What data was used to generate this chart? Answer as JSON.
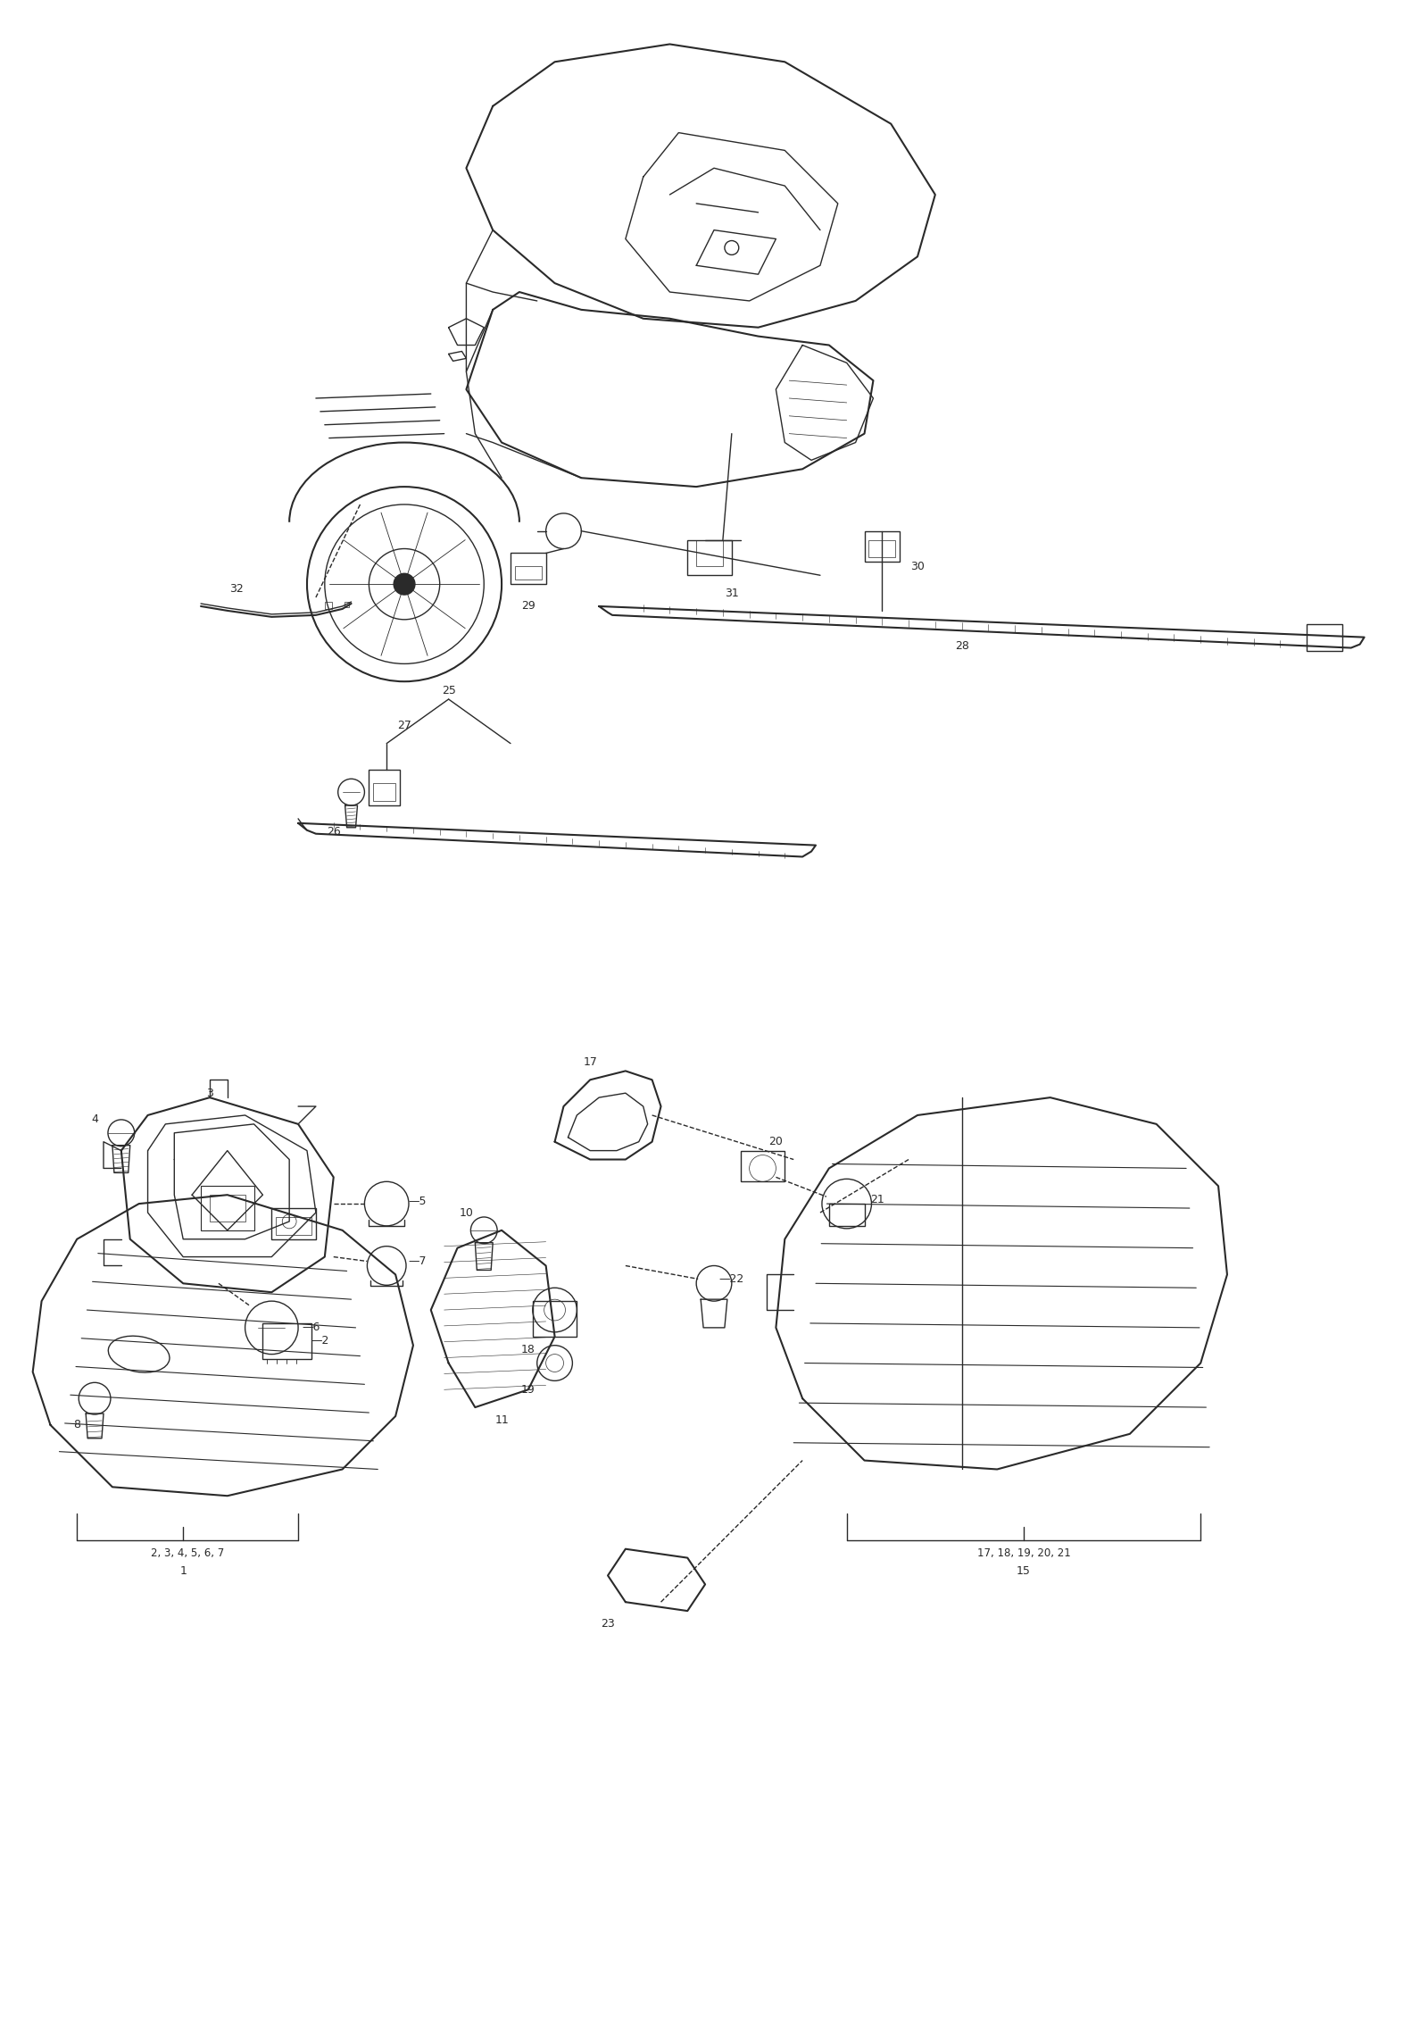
{
  "bg_color": "#ffffff",
  "line_color": "#2a2a2a",
  "fig_width": 16.0,
  "fig_height": 22.6,
  "dpi": 100
}
